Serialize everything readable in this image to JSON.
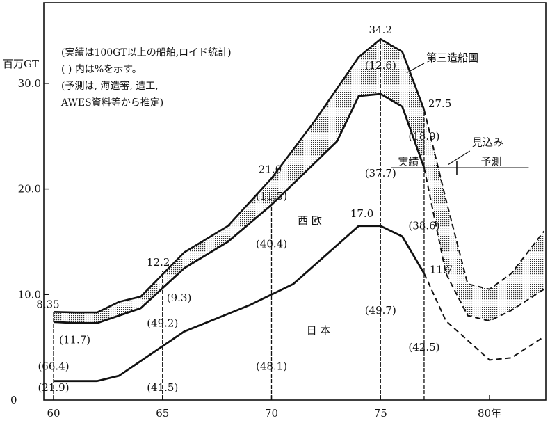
{
  "chart_data": {
    "type": "line",
    "x_ticks": [
      "60",
      "65",
      "70",
      "75",
      "80年"
    ],
    "y_ticks": [
      "10.0",
      "20.0",
      "30.0"
    ],
    "y_zero_label": "0",
    "y_unit": "百万GT",
    "xlim": [
      59.5,
      83.5
    ],
    "ylim": [
      0,
      37.5
    ],
    "notes": [
      "(実績は100GT以上の船舶,ロイド統計)",
      "(  ) 内は%を示す。",
      "(予測は, 海造審, 造工,",
      " AWES資料等から推定)"
    ],
    "series": [
      {
        "name": "日本",
        "x": [
          60,
          62,
          63,
          66,
          69,
          71,
          74,
          75,
          76,
          77
        ],
        "y": [
          1.8,
          1.8,
          2.3,
          6.5,
          9.0,
          11.0,
          16.5,
          16.5,
          15.5,
          12.0
        ],
        "forecast_x": [
          77,
          78,
          80,
          81,
          82.5
        ],
        "forecast_y": [
          12.0,
          7.5,
          3.8,
          4.0,
          6.0
        ]
      },
      {
        "name": "西欧",
        "x": [
          60,
          61,
          62,
          64,
          66,
          68,
          70,
          73,
          74,
          75,
          76,
          77
        ],
        "y": [
          7.4,
          7.3,
          7.3,
          8.7,
          12.5,
          15.0,
          18.5,
          24.5,
          28.8,
          29.0,
          27.8,
          22.0
        ],
        "forecast_x": [
          77,
          78,
          79,
          80,
          81,
          82.5
        ],
        "forecast_y": [
          22.0,
          12.0,
          8.0,
          7.5,
          8.5,
          10.5
        ]
      },
      {
        "name": "第三造船国",
        "x": [
          60,
          61,
          62,
          63,
          64,
          66,
          68,
          70,
          72,
          74,
          75,
          76,
          77
        ],
        "y": [
          8.35,
          8.3,
          8.3,
          9.3,
          9.8,
          14.0,
          16.5,
          21.0,
          26.5,
          32.5,
          34.2,
          33.0,
          27.5
        ],
        "forecast_x": [
          77,
          78,
          79,
          80,
          81,
          82.5
        ],
        "forecast_y": [
          27.5,
          19.0,
          11.0,
          10.5,
          12.0,
          16.0
        ]
      }
    ],
    "value_labels": [
      {
        "text": "8.35",
        "x": 60,
        "y": 8.35
      },
      {
        "text": "12.2",
        "x": 65,
        "y": 12.2
      },
      {
        "text": "21.0",
        "x": 70,
        "y": 21.0
      },
      {
        "text": "34.2",
        "x": 75,
        "y": 34.2
      },
      {
        "text": "17.0",
        "x": 75,
        "y": 17.0
      },
      {
        "text": "27.5",
        "x": 77,
        "y": 27.5
      },
      {
        "text": "11.7",
        "x": 77,
        "y": 11.7
      }
    ],
    "percent_labels": [
      {
        "text": "(11.7)",
        "x": 60,
        "y": 5.7
      },
      {
        "text": "(66.4)",
        "x": 60,
        "y": 3.2
      },
      {
        "text": "(21.9)",
        "x": 60,
        "y": 1.2
      },
      {
        "text": "(9.3)",
        "x": 65,
        "y": 9.7
      },
      {
        "text": "(49.2)",
        "x": 65,
        "y": 7.3
      },
      {
        "text": "(41.5)",
        "x": 65,
        "y": 1.2
      },
      {
        "text": "(11.5)",
        "x": 70,
        "y": 19.3
      },
      {
        "text": "(40.4)",
        "x": 70,
        "y": 14.8
      },
      {
        "text": "(48.1)",
        "x": 70,
        "y": 3.2
      },
      {
        "text": "(12.6)",
        "x": 75,
        "y": 31.7
      },
      {
        "text": "(37.7)",
        "x": 75,
        "y": 21.5
      },
      {
        "text": "(49.7)",
        "x": 75,
        "y": 8.5
      },
      {
        "text": "(18.9)",
        "x": 77,
        "y": 25.0
      },
      {
        "text": "(38.6)",
        "x": 77,
        "y": 16.5
      },
      {
        "text": "(42.5)",
        "x": 77,
        "y": 5.0
      }
    ],
    "region_labels": {
      "third": "第三造船国",
      "west": "西 欧",
      "japan": "日  本"
    },
    "divider": {
      "actual": "実績",
      "forecast": "予測",
      "estimate": "見込み",
      "y": 22.0,
      "x_from": 75.5,
      "x_to": 81.8
    },
    "vlines": [
      {
        "x": 60,
        "y_top": 8.35
      },
      {
        "x": 65,
        "y_top": 12.2
      },
      {
        "x": 70,
        "y_top": 18.5
      },
      {
        "x": 75,
        "y_top": 34.2
      },
      {
        "x": 77,
        "y_top": 27.5
      }
    ],
    "grid": false
  }
}
